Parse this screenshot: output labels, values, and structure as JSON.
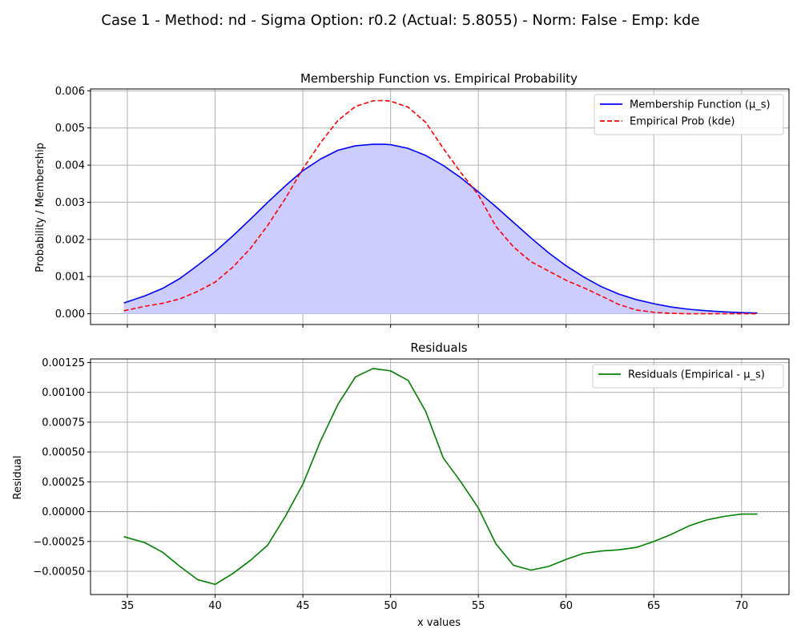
{
  "figure": {
    "suptitle": "Case 1 - Method: nd - Sigma Option: r0.2 (Actual: 5.8055) - Norm: False - Emp: kde"
  },
  "chart_data": [
    {
      "type": "line",
      "title": "Membership Function vs. Empirical Probability",
      "xlabel": "",
      "ylabel": "Probability / Membership",
      "xlim": [
        32.9,
        72.7
      ],
      "ylim": [
        -0.00029,
        0.00605
      ],
      "xticks": [
        35,
        40,
        45,
        50,
        55,
        60,
        65,
        70
      ],
      "yticks": [
        0.0,
        0.001,
        0.002,
        0.003,
        0.004,
        0.005,
        0.006
      ],
      "ytick_labels": [
        "0.000",
        "0.001",
        "0.002",
        "0.003",
        "0.004",
        "0.005",
        "0.006"
      ],
      "grid": true,
      "legend_position": "top-right",
      "x": [
        34.8,
        36,
        37,
        38,
        39,
        40,
        41,
        42,
        43,
        44,
        45,
        46,
        47,
        48,
        49,
        49.6,
        50,
        51,
        52,
        53,
        54,
        55,
        56,
        57,
        58,
        59,
        60,
        61,
        62,
        63,
        64,
        65,
        66,
        67,
        68,
        69,
        70,
        70.9
      ],
      "series": [
        {
          "name": "Membership Function (μ_s)",
          "color": "#0000ff",
          "style": "solid",
          "fill": "#ccccff",
          "values": [
            0.00029,
            0.00048,
            0.00068,
            0.00095,
            0.0013,
            0.00167,
            0.00209,
            0.00254,
            0.003,
            0.00344,
            0.00385,
            0.00416,
            0.0044,
            0.00452,
            0.00456,
            0.00456,
            0.00455,
            0.00445,
            0.00426,
            0.00399,
            0.00366,
            0.00328,
            0.00288,
            0.00246,
            0.00204,
            0.00164,
            0.00129,
            0.00099,
            0.00073,
            0.00053,
            0.00038,
            0.00027,
            0.00018,
            0.00012,
            8e-05,
            5e-05,
            3e-05,
            2e-05
          ]
        },
        {
          "name": "Empirical Prob (kde)",
          "color": "#ff0000",
          "style": "dashed",
          "values": [
            8e-05,
            0.0002,
            0.00028,
            0.0004,
            0.0006,
            0.00085,
            0.00125,
            0.00175,
            0.00238,
            0.0031,
            0.0039,
            0.0046,
            0.0052,
            0.00558,
            0.00573,
            0.00574,
            0.00572,
            0.00556,
            0.00515,
            0.00445,
            0.0038,
            0.0032,
            0.00235,
            0.0018,
            0.0014,
            0.00115,
            0.0009,
            0.0007,
            0.00048,
            0.00025,
            0.0001,
            4e-05,
            1e-05,
            0.0,
            0.0,
            0.0,
            0.0,
            0.0
          ]
        }
      ]
    },
    {
      "type": "line",
      "title": "Residuals",
      "xlabel": "x values",
      "ylabel": "Residual",
      "xlim": [
        32.9,
        72.7
      ],
      "ylim": [
        -0.000695,
        0.00128
      ],
      "xticks": [
        35,
        40,
        45,
        50,
        55,
        60,
        65,
        70
      ],
      "yticks": [
        -0.0005,
        -0.00025,
        0.0,
        0.00025,
        0.0005,
        0.00075,
        0.001,
        0.00125
      ],
      "ytick_labels": [
        "−0.00050",
        "−0.00025",
        "0.00000",
        "0.00025",
        "0.00050",
        "0.00075",
        "0.00100",
        "0.00125"
      ],
      "grid": true,
      "legend_position": "top-right",
      "zero_line": {
        "y": 0.0,
        "color": "#808080",
        "style": "dotted"
      },
      "x": [
        34.8,
        36,
        37,
        38,
        39,
        40,
        41,
        42,
        43,
        44,
        45,
        46,
        47,
        48,
        49,
        50,
        51,
        52,
        53,
        54,
        55,
        56,
        57,
        58,
        59,
        60,
        61,
        62,
        63,
        64,
        65,
        66,
        67,
        68,
        69,
        70,
        70.9
      ],
      "series": [
        {
          "name": "Residuals (Empirical - μ_s)",
          "color": "#008000",
          "style": "solid",
          "values": [
            -0.00021,
            -0.00026,
            -0.00034,
            -0.00046,
            -0.00057,
            -0.00061,
            -0.00052,
            -0.00041,
            -0.00028,
            -4e-05,
            0.00023,
            0.00059,
            0.0009,
            0.00113,
            0.0012,
            0.00118,
            0.0011,
            0.00084,
            0.00045,
            0.00025,
            3e-05,
            -0.00027,
            -0.00045,
            -0.00049,
            -0.00046,
            -0.0004,
            -0.00035,
            -0.00033,
            -0.00032,
            -0.0003,
            -0.00025,
            -0.00019,
            -0.00012,
            -7e-05,
            -4e-05,
            -2e-05,
            -2e-05
          ]
        }
      ]
    }
  ]
}
